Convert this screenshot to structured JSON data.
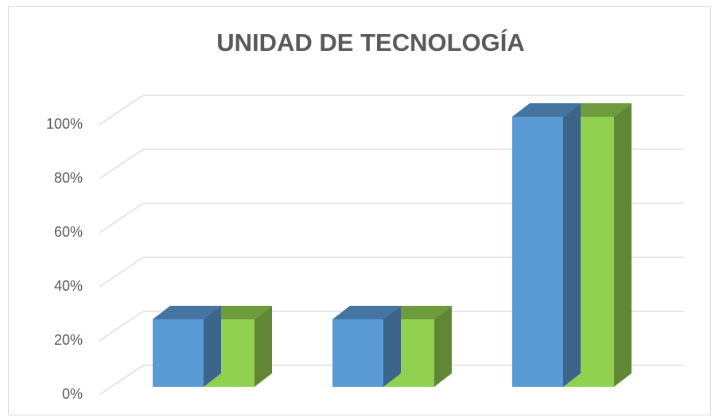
{
  "chart_data": {
    "type": "bar3d",
    "title": "UNIDAD DE TECNOLOGÍA",
    "categories": [
      null,
      null,
      null
    ],
    "series": [
      {
        "color": "#5b9bd5",
        "values": [
          25,
          25,
          100
        ]
      },
      {
        "color": "#92d050",
        "values": [
          25,
          25,
          100
        ]
      }
    ],
    "ylim": [
      0,
      100
    ],
    "yticks": [
      {
        "value": 0,
        "label": "0%"
      },
      {
        "value": 20,
        "label": "20%"
      },
      {
        "value": 40,
        "label": "40%"
      },
      {
        "value": 60,
        "label": "60%"
      },
      {
        "value": 80,
        "label": "80%"
      },
      {
        "value": 100,
        "label": "100%"
      }
    ],
    "grid": true
  }
}
